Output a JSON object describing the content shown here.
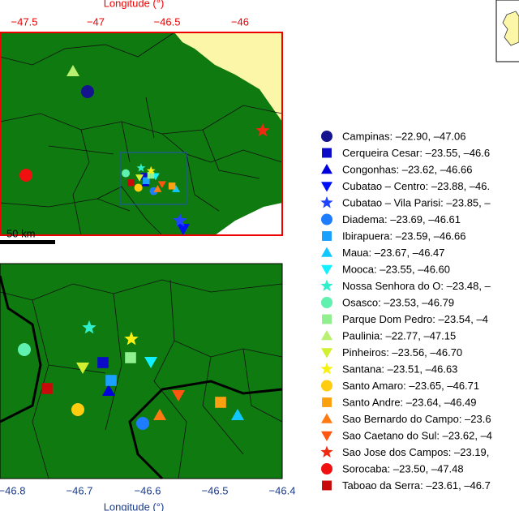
{
  "top_map": {
    "axis_title": "Longitude (°)",
    "ticks": [
      "−47.5",
      "−47",
      "−46.5",
      "−46"
    ],
    "scale_label": "50 km"
  },
  "bottom_map": {
    "axis_title": "Longitude (°)",
    "ticks": [
      "−46.8",
      "−46.7",
      "−46.6",
      "−46.5",
      "−46.4"
    ]
  },
  "stations": [
    {
      "label": "Campinas: –22.90, –47.06",
      "symbol": "circle",
      "color": "#14148f"
    },
    {
      "label": "Cerqueira Cesar: –23.55, –46.6",
      "symbol": "square",
      "color": "#0a0ac8"
    },
    {
      "label": "Congonhas: –23.62, –46.66",
      "symbol": "triangle",
      "color": "#0000dc"
    },
    {
      "label": "Cubatao – Centro: –23.88, –46.",
      "symbol": "triangle-down",
      "color": "#0010f5"
    },
    {
      "label": "Cubatao – Vila Parisi: –23.85, –",
      "symbol": "star",
      "color": "#1f44ff"
    },
    {
      "label": "Diadema: –23.69, –46.61",
      "symbol": "circle",
      "color": "#1e7cff"
    },
    {
      "label": "Ibirapuera: –23.59, –46.66",
      "symbol": "square",
      "color": "#1aa0ff"
    },
    {
      "label": "Maua: –23.67, –46.47",
      "symbol": "triangle",
      "color": "#10c8ff"
    },
    {
      "label": "Mooca: –23.55, –46.60",
      "symbol": "triangle-down",
      "color": "#10f0ff"
    },
    {
      "label": "Nossa Senhora do O: –23.48, –",
      "symbol": "star",
      "color": "#30f0cc"
    },
    {
      "label": "Osasco: –23.53, –46.79",
      "symbol": "circle",
      "color": "#60f0b0"
    },
    {
      "label": "Parque Dom Pedro: –23.54, –4",
      "symbol": "square",
      "color": "#90f090"
    },
    {
      "label": "Paulinia: –22.77, –47.15",
      "symbol": "triangle",
      "color": "#b8f070"
    },
    {
      "label": "Pinheiros: –23.56, –46.70",
      "symbol": "triangle-down",
      "color": "#d0f030"
    },
    {
      "label": "Santana: –23.51, –46.63",
      "symbol": "star",
      "color": "#f8f010"
    },
    {
      "label": "Santo Amaro: –23.65, –46.71",
      "symbol": "circle",
      "color": "#ffcc10"
    },
    {
      "label": "Santo Andre: –23.64, –46.49",
      "symbol": "square",
      "color": "#ffa010"
    },
    {
      "label": "Sao Bernardo do Campo: –23.6",
      "symbol": "triangle",
      "color": "#ff7a10"
    },
    {
      "label": "Sao Caetano do Sul: –23.62, –4",
      "symbol": "triangle-down",
      "color": "#ff5510"
    },
    {
      "label": "Sao Jose dos Campos: –23.19,",
      "symbol": "star",
      "color": "#f02a10"
    },
    {
      "label": "Sorocaba: –23.50, –47.48",
      "symbol": "circle",
      "color": "#f01010"
    },
    {
      "label": "Taboao da Serra: –23.61, –46.7",
      "symbol": "square",
      "color": "#c80a0a"
    }
  ]
}
